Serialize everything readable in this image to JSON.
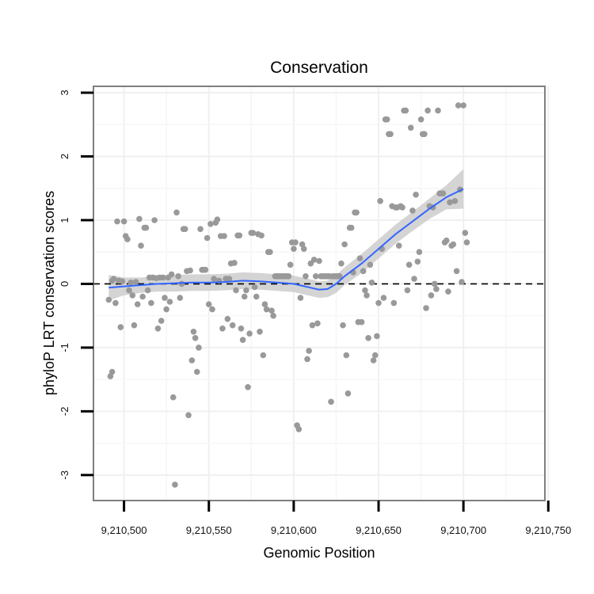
{
  "chart_data": {
    "type": "scatter",
    "title": "Conservation",
    "xlabel": "Genomic Position",
    "ylabel": "phyloP LRT conservation scores",
    "xlim": [
      9210482,
      9210748
    ],
    "ylim": [
      -3.4,
      3.1
    ],
    "x_ticks": [
      9210500,
      9210550,
      9210600,
      9210650,
      9210700,
      9210750
    ],
    "x_tick_labels": [
      "9,210,500",
      "9,210,550",
      "9,210,600",
      "9,210,650",
      "9,210,700",
      "9,210,750"
    ],
    "y_ticks": [
      -3,
      -2,
      -1,
      0,
      1,
      2,
      3
    ],
    "y_tick_labels": [
      "-3",
      "-2",
      "-1",
      "0",
      "1",
      "2",
      "3"
    ],
    "grid": true,
    "reference_line": {
      "y": 0,
      "style": "dashed",
      "color": "#000000"
    },
    "points_color": "#999999",
    "smooth_color": "#3366ff",
    "ribbon_color": "#cccccc",
    "points": [
      [
        9210491,
        -0.25
      ],
      [
        9210492,
        -1.45
      ],
      [
        9210493,
        -1.38
      ],
      [
        9210493,
        0.05
      ],
      [
        9210494,
        0.08
      ],
      [
        9210495,
        -0.3
      ],
      [
        9210496,
        0.98
      ],
      [
        9210497,
        0.05
      ],
      [
        9210498,
        -0.68
      ],
      [
        9210499,
        0.04
      ],
      [
        9210500,
        0.98
      ],
      [
        9210501,
        0.75
      ],
      [
        9210502,
        0.7
      ],
      [
        9210503,
        -0.1
      ],
      [
        9210504,
        0.02
      ],
      [
        9210505,
        -0.18
      ],
      [
        9210506,
        -0.65
      ],
      [
        9210507,
        0.03
      ],
      [
        9210508,
        -0.32
      ],
      [
        9210509,
        1.02
      ],
      [
        9210510,
        0.6
      ],
      [
        9210511,
        -0.2
      ],
      [
        9210512,
        0.88
      ],
      [
        9210513,
        0.88
      ],
      [
        9210514,
        -0.1
      ],
      [
        9210515,
        0.1
      ],
      [
        9210516,
        -0.3
      ],
      [
        9210517,
        0.1
      ],
      [
        9210518,
        1.0
      ],
      [
        9210519,
        0.09
      ],
      [
        9210520,
        -0.7
      ],
      [
        9210521,
        0.1
      ],
      [
        9210522,
        -0.58
      ],
      [
        9210523,
        0.1
      ],
      [
        9210524,
        -0.22
      ],
      [
        9210525,
        -0.4
      ],
      [
        9210526,
        0.1
      ],
      [
        9210527,
        -0.28
      ],
      [
        9210528,
        0.15
      ],
      [
        9210529,
        -1.78
      ],
      [
        9210530,
        -3.15
      ],
      [
        9210531,
        1.12
      ],
      [
        9210532,
        0.12
      ],
      [
        9210533,
        -0.22
      ],
      [
        9210534,
        0.0
      ],
      [
        9210535,
        0.86
      ],
      [
        9210536,
        0.86
      ],
      [
        9210537,
        0.2
      ],
      [
        9210538,
        -2.06
      ],
      [
        9210539,
        0.21
      ],
      [
        9210540,
        -1.2
      ],
      [
        9210541,
        -0.75
      ],
      [
        9210542,
        -0.85
      ],
      [
        9210543,
        -1.38
      ],
      [
        9210544,
        -1.0
      ],
      [
        9210545,
        0.86
      ],
      [
        9210546,
        0.22
      ],
      [
        9210547,
        0.22
      ],
      [
        9210548,
        0.22
      ],
      [
        9210549,
        0.72
      ],
      [
        9210550,
        -0.32
      ],
      [
        9210551,
        0.94
      ],
      [
        9210552,
        -0.4
      ],
      [
        9210553,
        0.08
      ],
      [
        9210554,
        0.96
      ],
      [
        9210555,
        1.01
      ],
      [
        9210556,
        0.05
      ],
      [
        9210557,
        0.75
      ],
      [
        9210558,
        -0.7
      ],
      [
        9210559,
        0.75
      ],
      [
        9210560,
        0.08
      ],
      [
        9210561,
        -0.55
      ],
      [
        9210562,
        0.08
      ],
      [
        9210563,
        0.32
      ],
      [
        9210564,
        -0.65
      ],
      [
        9210565,
        0.33
      ],
      [
        9210566,
        -0.1
      ],
      [
        9210567,
        0.76
      ],
      [
        9210568,
        0.76
      ],
      [
        9210569,
        -0.7
      ],
      [
        9210570,
        -0.88
      ],
      [
        9210571,
        -0.2
      ],
      [
        9210572,
        -0.1
      ],
      [
        9210573,
        -1.62
      ],
      [
        9210574,
        -0.78
      ],
      [
        9210575,
        0.8
      ],
      [
        9210576,
        0.8
      ],
      [
        9210577,
        -0.05
      ],
      [
        9210578,
        -0.2
      ],
      [
        9210579,
        0.78
      ],
      [
        9210580,
        -0.75
      ],
      [
        9210581,
        0.76
      ],
      [
        9210582,
        -1.12
      ],
      [
        9210583,
        -0.32
      ],
      [
        9210584,
        -0.4
      ],
      [
        9210585,
        0.5
      ],
      [
        9210586,
        0.5
      ],
      [
        9210587,
        -0.42
      ],
      [
        9210588,
        -0.5
      ],
      [
        9210589,
        0.12
      ],
      [
        9210590,
        0.12
      ],
      [
        9210591,
        0.12
      ],
      [
        9210592,
        0.12
      ],
      [
        9210593,
        0.12
      ],
      [
        9210594,
        0.12
      ],
      [
        9210595,
        0.12
      ],
      [
        9210596,
        0.12
      ],
      [
        9210597,
        0.12
      ],
      [
        9210598,
        0.3
      ],
      [
        9210599,
        0.65
      ],
      [
        9210600,
        0.55
      ],
      [
        9210601,
        0.65
      ],
      [
        9210602,
        -2.22
      ],
      [
        9210603,
        -2.28
      ],
      [
        9210604,
        -0.22
      ],
      [
        9210605,
        0.62
      ],
      [
        9210606,
        0.55
      ],
      [
        9210607,
        0.12
      ],
      [
        9210608,
        -1.18
      ],
      [
        9210609,
        -1.05
      ],
      [
        9210610,
        0.32
      ],
      [
        9210611,
        -0.65
      ],
      [
        9210612,
        0.38
      ],
      [
        9210613,
        0.12
      ],
      [
        9210614,
        -0.62
      ],
      [
        9210615,
        0.36
      ],
      [
        9210616,
        0.12
      ],
      [
        9210617,
        0.12
      ],
      [
        9210618,
        0.12
      ],
      [
        9210619,
        0.12
      ],
      [
        9210620,
        0.12
      ],
      [
        9210621,
        0.12
      ],
      [
        9210622,
        -1.85
      ],
      [
        9210623,
        0.12
      ],
      [
        9210624,
        0.12
      ],
      [
        9210625,
        0.12
      ],
      [
        9210626,
        0.12
      ],
      [
        9210627,
        0.12
      ],
      [
        9210628,
        0.32
      ],
      [
        9210629,
        -0.65
      ],
      [
        9210630,
        0.62
      ],
      [
        9210631,
        -1.12
      ],
      [
        9210632,
        -1.72
      ],
      [
        9210633,
        0.88
      ],
      [
        9210634,
        0.88
      ],
      [
        9210635,
        0.18
      ],
      [
        9210636,
        1.12
      ],
      [
        9210637,
        1.12
      ],
      [
        9210638,
        -0.6
      ],
      [
        9210639,
        0.4
      ],
      [
        9210640,
        -0.6
      ],
      [
        9210641,
        0.2
      ],
      [
        9210642,
        -0.1
      ],
      [
        9210643,
        -0.18
      ],
      [
        9210644,
        -0.85
      ],
      [
        9210645,
        0.3
      ],
      [
        9210646,
        0.02
      ],
      [
        9210647,
        -1.2
      ],
      [
        9210648,
        -1.12
      ],
      [
        9210649,
        -0.82
      ],
      [
        9210650,
        -0.3
      ],
      [
        9210651,
        1.3
      ],
      [
        9210652,
        0.55
      ],
      [
        9210653,
        -0.22
      ],
      [
        9210654,
        2.58
      ],
      [
        9210655,
        2.58
      ],
      [
        9210656,
        2.35
      ],
      [
        9210657,
        2.35
      ],
      [
        9210658,
        1.22
      ],
      [
        9210659,
        -0.3
      ],
      [
        9210660,
        1.2
      ],
      [
        9210661,
        1.2
      ],
      [
        9210662,
        0.6
      ],
      [
        9210663,
        1.22
      ],
      [
        9210664,
        1.2
      ],
      [
        9210665,
        2.72
      ],
      [
        9210666,
        2.72
      ],
      [
        9210667,
        -0.1
      ],
      [
        9210668,
        0.3
      ],
      [
        9210669,
        2.45
      ],
      [
        9210670,
        1.15
      ],
      [
        9210671,
        0.08
      ],
      [
        9210672,
        1.4
      ],
      [
        9210673,
        0.35
      ],
      [
        9210674,
        0.5
      ],
      [
        9210675,
        2.58
      ],
      [
        9210676,
        2.35
      ],
      [
        9210677,
        2.35
      ],
      [
        9210678,
        -0.38
      ],
      [
        9210679,
        2.72
      ],
      [
        9210680,
        1.22
      ],
      [
        9210681,
        -0.18
      ],
      [
        9210682,
        1.2
      ],
      [
        9210683,
        0.0
      ],
      [
        9210684,
        -0.08
      ],
      [
        9210685,
        2.72
      ],
      [
        9210686,
        1.42
      ],
      [
        9210687,
        1.42
      ],
      [
        9210688,
        1.42
      ],
      [
        9210689,
        0.65
      ],
      [
        9210690,
        0.68
      ],
      [
        9210691,
        -0.12
      ],
      [
        9210692,
        1.28
      ],
      [
        9210693,
        0.6
      ],
      [
        9210694,
        0.62
      ],
      [
        9210695,
        1.3
      ],
      [
        9210696,
        0.2
      ],
      [
        9210697,
        2.8
      ],
      [
        9210698,
        1.48
      ],
      [
        9210699,
        0.03
      ],
      [
        9210700,
        2.8
      ],
      [
        9210701,
        0.8
      ],
      [
        9210702,
        0.65
      ]
    ],
    "smooth": {
      "x": [
        9210491,
        9210500,
        9210510,
        9210520,
        9210530,
        9210540,
        9210550,
        9210560,
        9210570,
        9210580,
        9210590,
        9210600,
        9210610,
        9210615,
        9210620,
        9210625,
        9210630,
        9210640,
        9210650,
        9210660,
        9210670,
        9210680,
        9210690,
        9210700
      ],
      "y": [
        -0.06,
        -0.04,
        -0.02,
        0.0,
        0.01,
        0.02,
        0.02,
        0.03,
        0.05,
        0.04,
        0.02,
        0.0,
        -0.06,
        -0.09,
        -0.08,
        0.0,
        0.12,
        0.32,
        0.55,
        0.78,
        0.98,
        1.18,
        1.36,
        1.49
      ],
      "lower": [
        -0.26,
        -0.18,
        -0.14,
        -0.12,
        -0.12,
        -0.11,
        -0.11,
        -0.1,
        -0.08,
        -0.09,
        -0.11,
        -0.13,
        -0.19,
        -0.22,
        -0.21,
        -0.14,
        -0.02,
        0.17,
        0.4,
        0.63,
        0.83,
        1.02,
        1.17,
        1.18
      ],
      "upper": [
        0.14,
        0.1,
        0.1,
        0.12,
        0.14,
        0.15,
        0.15,
        0.16,
        0.18,
        0.17,
        0.15,
        0.13,
        0.07,
        0.04,
        0.05,
        0.14,
        0.26,
        0.47,
        0.7,
        0.93,
        1.13,
        1.34,
        1.55,
        1.8
      ]
    }
  }
}
